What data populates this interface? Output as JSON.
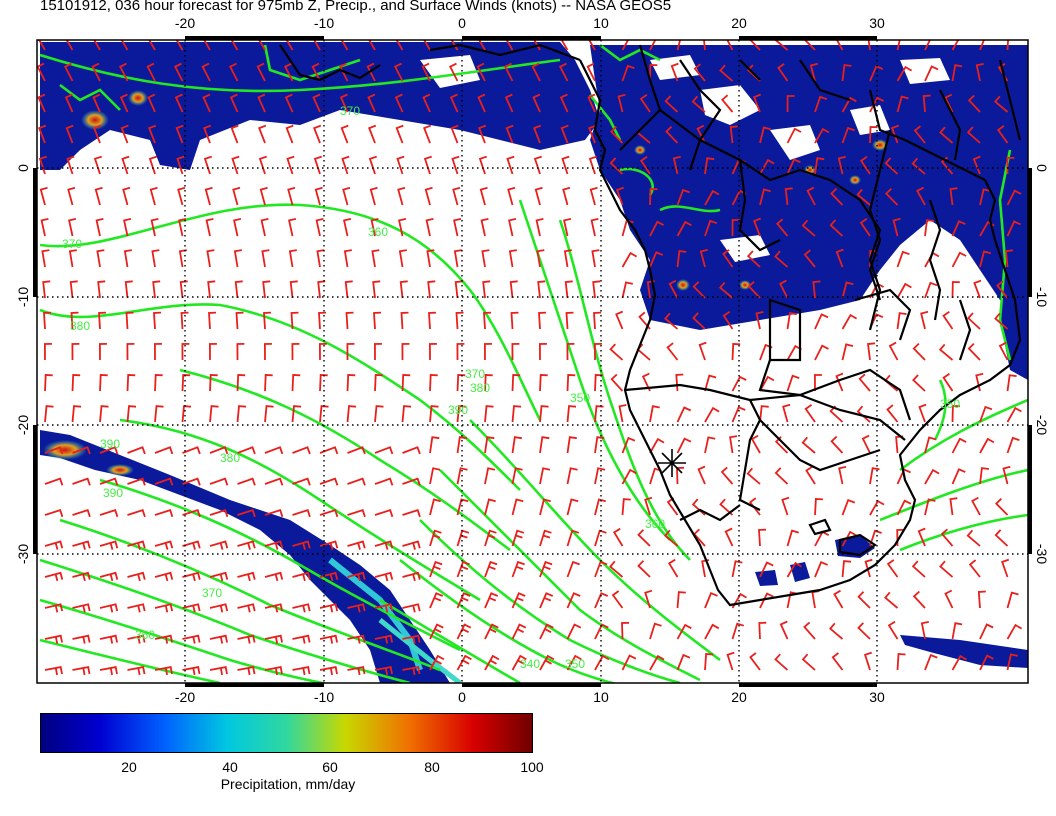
{
  "title": "15101912, 036 hour forecast for 975mb Z, Precip., and Surface Winds (knots) -- NASA GEOS5",
  "map": {
    "lon_ticks": [
      "-20",
      "-10",
      "0",
      "10",
      "20",
      "30"
    ],
    "lat_ticks": [
      "0",
      "-10",
      "-20",
      "-30"
    ],
    "contour_labels": [
      "360",
      "370",
      "380",
      "390",
      "370",
      "380",
      "390",
      "350",
      "360",
      "370",
      "360",
      "380",
      "390",
      "340",
      "350",
      "350",
      "370"
    ],
    "colors": {
      "precip_low": "#0a1a9a",
      "precip_mid": "#16c8c8",
      "precip_high": "#c81414",
      "wind_barbs": "#e8201c",
      "height_contours": "#22e822",
      "coastlines": "#000000"
    },
    "marker": "*"
  },
  "colorbar": {
    "ticks": [
      "20",
      "40",
      "60",
      "80",
      "100"
    ],
    "label": "Precipitation, mm/day",
    "range": [
      0,
      100
    ]
  }
}
